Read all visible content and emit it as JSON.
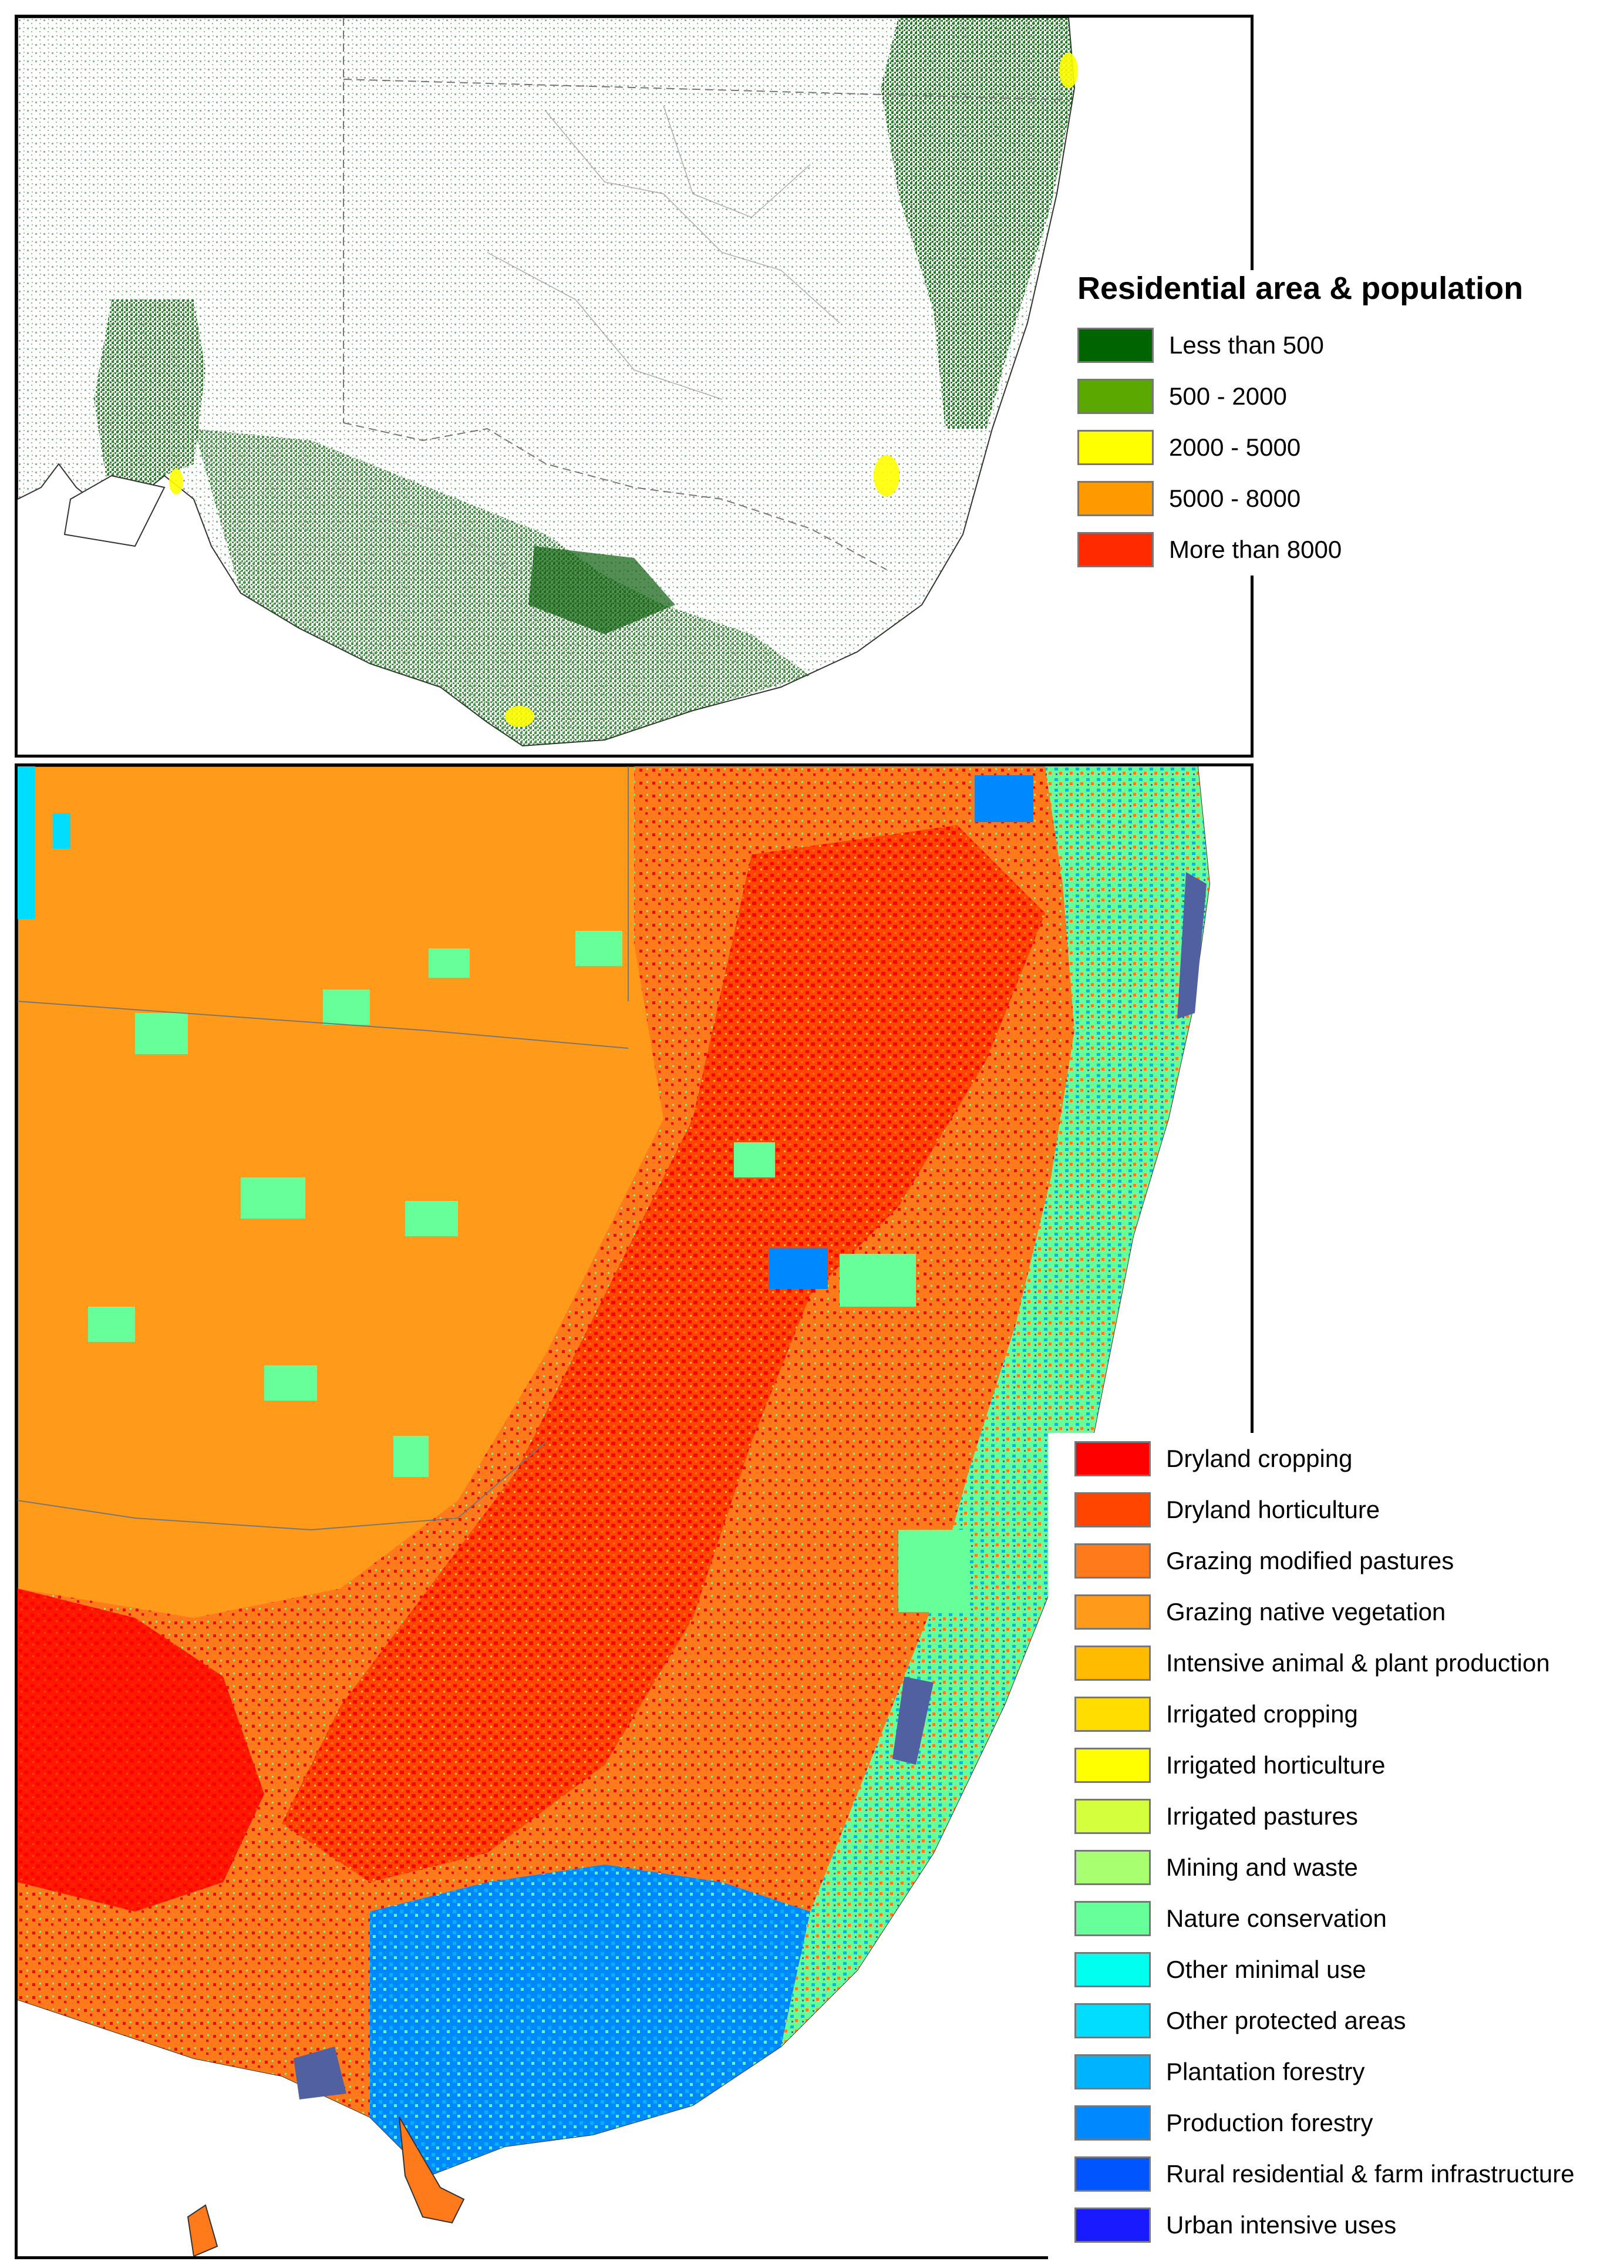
{
  "residential_map": {
    "legend_title": "Residential area & population",
    "legend": [
      {
        "label": "Less than 500",
        "color": "#006400"
      },
      {
        "label": "500 - 2000",
        "color": "#5aa800"
      },
      {
        "label": "2000 - 5000",
        "color": "#ffff00"
      },
      {
        "label": "5000 - 8000",
        "color": "#ff9900"
      },
      {
        "label": "More than 8000",
        "color": "#ff2a00"
      }
    ]
  },
  "land_use_map": {
    "legend": [
      {
        "label": "Dryland cropping",
        "color": "#ff0000"
      },
      {
        "label": "Dryland horticulture",
        "color": "#ff4500"
      },
      {
        "label": "Grazing modified pastures",
        "color": "#ff7a1a"
      },
      {
        "label": "Grazing native vegetation",
        "color": "#ff9a1a"
      },
      {
        "label": "Intensive animal & plant production",
        "color": "#ffbb00"
      },
      {
        "label": "Irrigated cropping",
        "color": "#ffdd00"
      },
      {
        "label": "Irrigated horticulture",
        "color": "#ffff00"
      },
      {
        "label": "Irrigated pastures",
        "color": "#d4ff3c"
      },
      {
        "label": "Mining and waste",
        "color": "#a8ff70"
      },
      {
        "label": "Nature conservation",
        "color": "#66ff99"
      },
      {
        "label": "Other minimal use",
        "color": "#00ffee"
      },
      {
        "label": "Other protected areas",
        "color": "#00ddff"
      },
      {
        "label": "Plantation forestry",
        "color": "#00b3ff"
      },
      {
        "label": "Production forestry",
        "color": "#0088ff"
      },
      {
        "label": "Rural residential & farm infrastructure",
        "color": "#0055ff"
      },
      {
        "label": "Urban intensive uses",
        "color": "#1a1aff"
      }
    ]
  }
}
